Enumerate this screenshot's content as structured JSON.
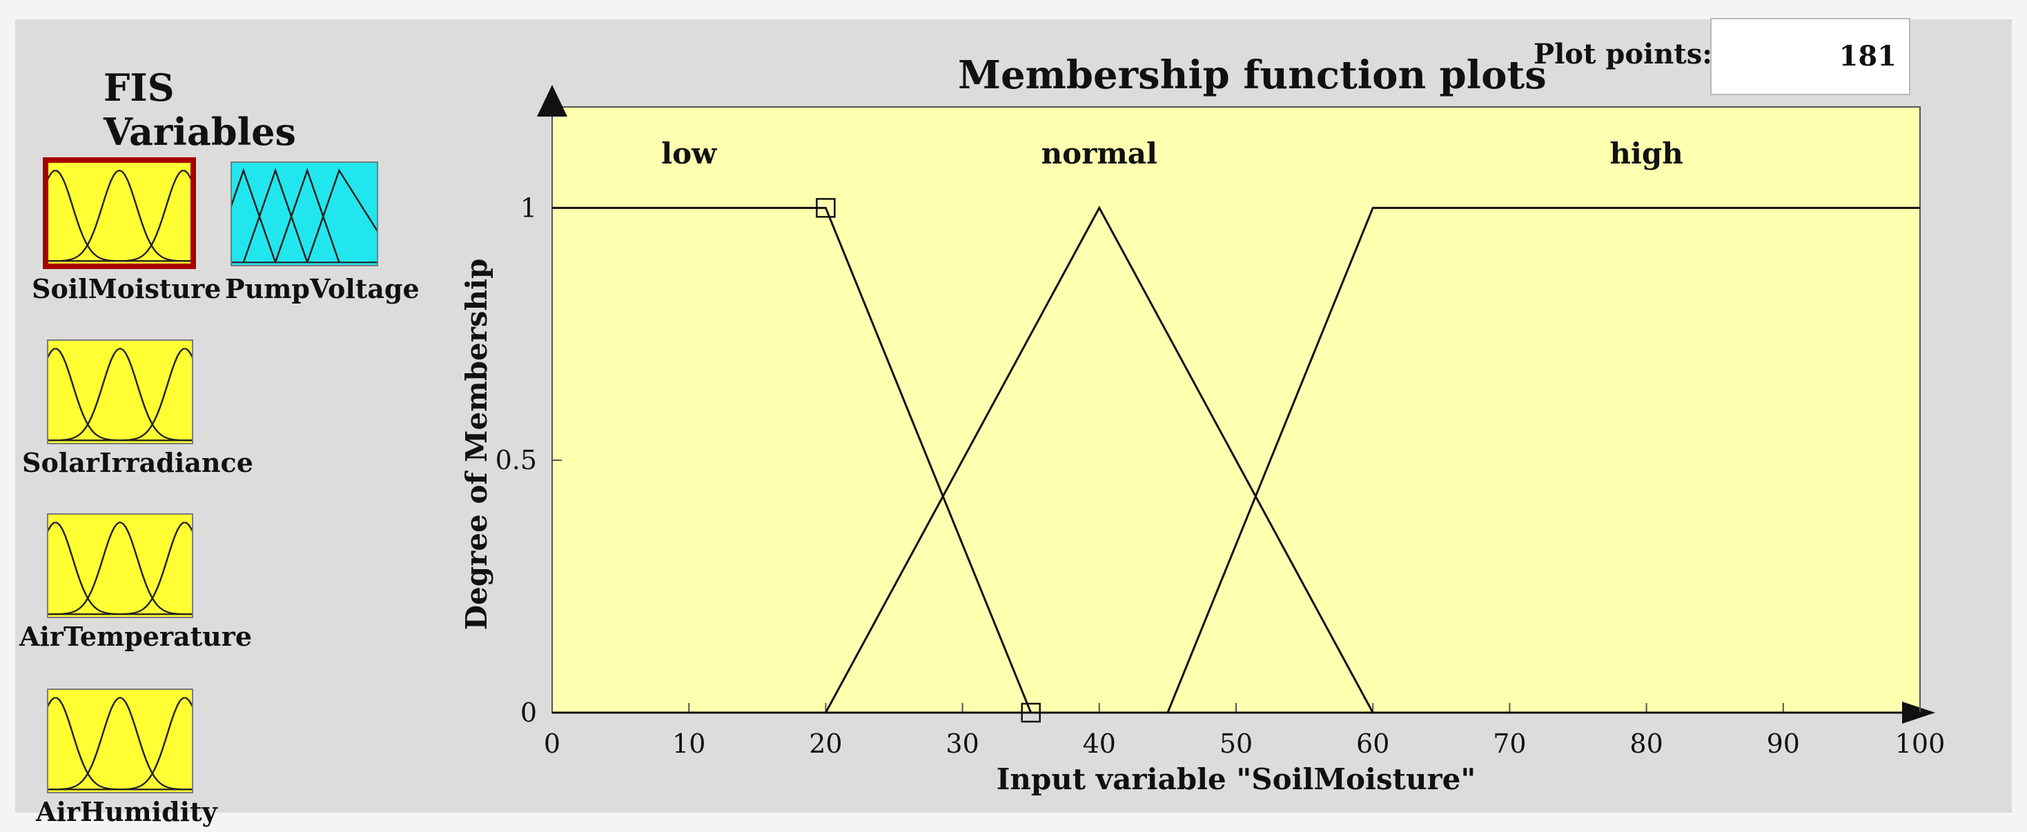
{
  "fis_variables": {
    "title": "FIS Variables",
    "items": [
      {
        "label": "SoilMoisture",
        "icon": "mf-triple-curves-icon",
        "color": "#ffff33",
        "selected": true
      },
      {
        "label": "PumpVoltage",
        "icon": "mf-quad-triangles-icon",
        "color": "#22e6ee",
        "selected": false
      },
      {
        "label": "SolarIrradiance",
        "icon": "mf-triple-curves-icon",
        "color": "#ffff33",
        "selected": false
      },
      {
        "label": "AirTemperature",
        "icon": "mf-triple-curves-icon",
        "color": "#ffff33",
        "selected": false
      },
      {
        "label": "AirHumidity",
        "icon": "mf-triple-curves-icon",
        "color": "#ffff33",
        "selected": false
      }
    ],
    "selected_border_color": "#a80000"
  },
  "plot": {
    "title": "Membership function plots",
    "plot_points_label": "Plot points:",
    "plot_points_value": "181"
  },
  "chart_data": {
    "type": "line",
    "xlabel": "Input variable \"SoilMoisture\"",
    "ylabel": "Degree of Membership",
    "xlim": [
      0,
      100
    ],
    "ylim": [
      0,
      1.2
    ],
    "x_ticks": [
      0,
      10,
      20,
      30,
      40,
      50,
      60,
      70,
      80,
      90,
      100
    ],
    "y_ticks": [
      0,
      0.5,
      1
    ],
    "background": "#ffffb0",
    "series": [
      {
        "name": "low",
        "label_x": 10,
        "x": [
          0,
          20,
          35,
          100
        ],
        "y": [
          1,
          1,
          0,
          0
        ]
      },
      {
        "name": "normal",
        "label_x": 40,
        "x": [
          0,
          20,
          40,
          60,
          100
        ],
        "y": [
          0,
          0,
          1,
          0,
          0
        ]
      },
      {
        "name": "high",
        "label_x": 80,
        "x": [
          0,
          45,
          60,
          100
        ],
        "y": [
          0,
          0,
          1,
          1
        ]
      }
    ],
    "markers": [
      {
        "x": 20,
        "y": 1
      },
      {
        "x": 35,
        "y": 0
      }
    ]
  }
}
